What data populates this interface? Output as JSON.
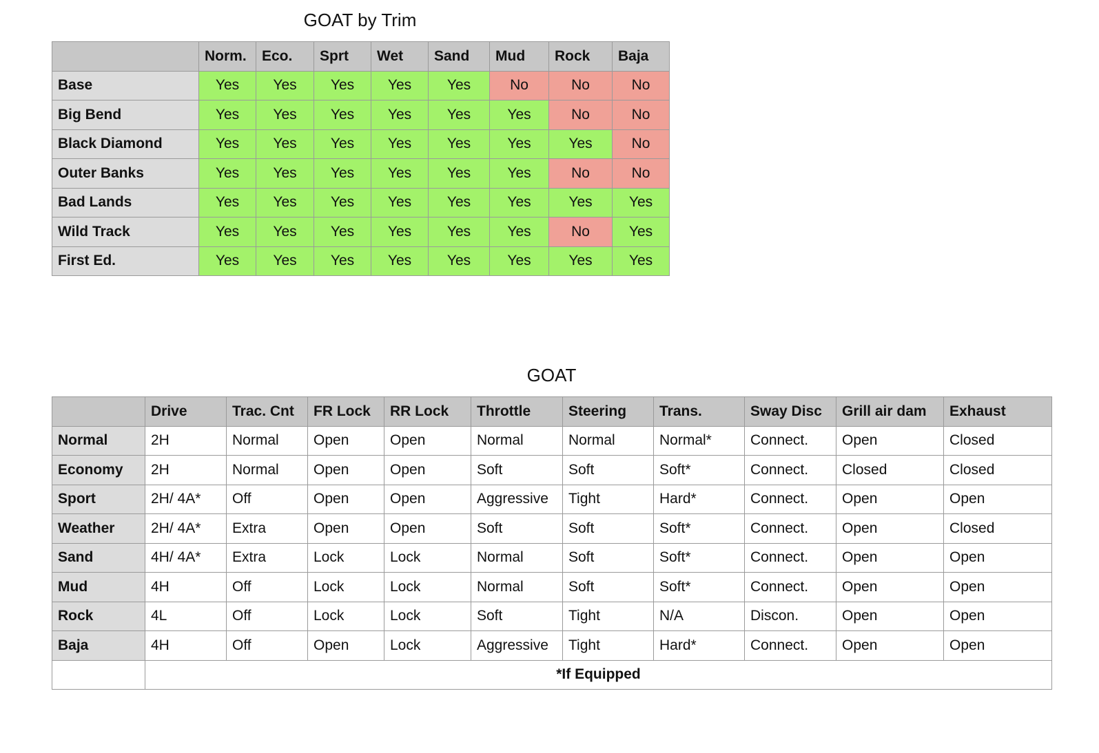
{
  "tables": [
    {
      "title": "GOAT by Trim",
      "columns": [
        "Norm.",
        "Eco.",
        "Sprt",
        "Wet",
        "Sand",
        "Mud",
        "Rock",
        "Baja"
      ],
      "cell_colors": {
        "Yes": "#a3f26a",
        "No": "#f0a197"
      },
      "rows": [
        {
          "label": "Base",
          "cells": [
            "Yes",
            "Yes",
            "Yes",
            "Yes",
            "Yes",
            "No",
            "No",
            "No"
          ]
        },
        {
          "label": "Big Bend",
          "cells": [
            "Yes",
            "Yes",
            "Yes",
            "Yes",
            "Yes",
            "Yes",
            "No",
            "No"
          ]
        },
        {
          "label": "Black Diamond",
          "cells": [
            "Yes",
            "Yes",
            "Yes",
            "Yes",
            "Yes",
            "Yes",
            "Yes",
            "No"
          ]
        },
        {
          "label": "Outer Banks",
          "cells": [
            "Yes",
            "Yes",
            "Yes",
            "Yes",
            "Yes",
            "Yes",
            "No",
            "No"
          ]
        },
        {
          "label": "Bad Lands",
          "cells": [
            "Yes",
            "Yes",
            "Yes",
            "Yes",
            "Yes",
            "Yes",
            "Yes",
            "Yes"
          ]
        },
        {
          "label": "Wild Track",
          "cells": [
            "Yes",
            "Yes",
            "Yes",
            "Yes",
            "Yes",
            "Yes",
            "No",
            "Yes"
          ]
        },
        {
          "label": "First Ed.",
          "cells": [
            "Yes",
            "Yes",
            "Yes",
            "Yes",
            "Yes",
            "Yes",
            "Yes",
            "Yes"
          ]
        }
      ]
    },
    {
      "title": "GOAT",
      "columns": [
        "Drive",
        "Trac. Cnt",
        "FR Lock",
        "RR Lock",
        "Throttle",
        "Steering",
        "Trans.",
        "Sway Disc",
        "Grill air dam",
        "Exhaust"
      ],
      "rows": [
        {
          "label": "Normal",
          "cells": [
            "2H",
            "Normal",
            "Open",
            "Open",
            "Normal",
            "Normal",
            "Normal*",
            "Connect.",
            "Open",
            "Closed"
          ]
        },
        {
          "label": "Economy",
          "cells": [
            "2H",
            "Normal",
            "Open",
            "Open",
            "Soft",
            "Soft",
            "Soft*",
            "Connect.",
            "Closed",
            "Closed"
          ]
        },
        {
          "label": "Sport",
          "cells": [
            "2H/ 4A*",
            "Off",
            "Open",
            "Open",
            "Aggressive",
            "Tight",
            "Hard*",
            "Connect.",
            "Open",
            "Open"
          ]
        },
        {
          "label": "Weather",
          "cells": [
            "2H/ 4A*",
            "Extra",
            "Open",
            "Open",
            "Soft",
            "Soft",
            "Soft*",
            "Connect.",
            "Open",
            "Closed"
          ]
        },
        {
          "label": "Sand",
          "cells": [
            "4H/ 4A*",
            "Extra",
            "Lock",
            "Lock",
            "Normal",
            "Soft",
            "Soft*",
            "Connect.",
            "Open",
            "Open"
          ]
        },
        {
          "label": "Mud",
          "cells": [
            "4H",
            "Off",
            "Lock",
            "Lock",
            "Normal",
            "Soft",
            "Soft*",
            "Connect.",
            "Open",
            "Open"
          ]
        },
        {
          "label": "Rock",
          "cells": [
            "4L",
            "Off",
            "Lock",
            "Lock",
            "Soft",
            "Tight",
            "N/A",
            "Discon.",
            "Open",
            "Open"
          ]
        },
        {
          "label": "Baja",
          "cells": [
            "4H",
            "Off",
            "Open",
            "Lock",
            "Aggressive",
            "Tight",
            "Hard*",
            "Connect.",
            "Open",
            "Open"
          ]
        }
      ],
      "footnote": "*If Equipped"
    }
  ]
}
